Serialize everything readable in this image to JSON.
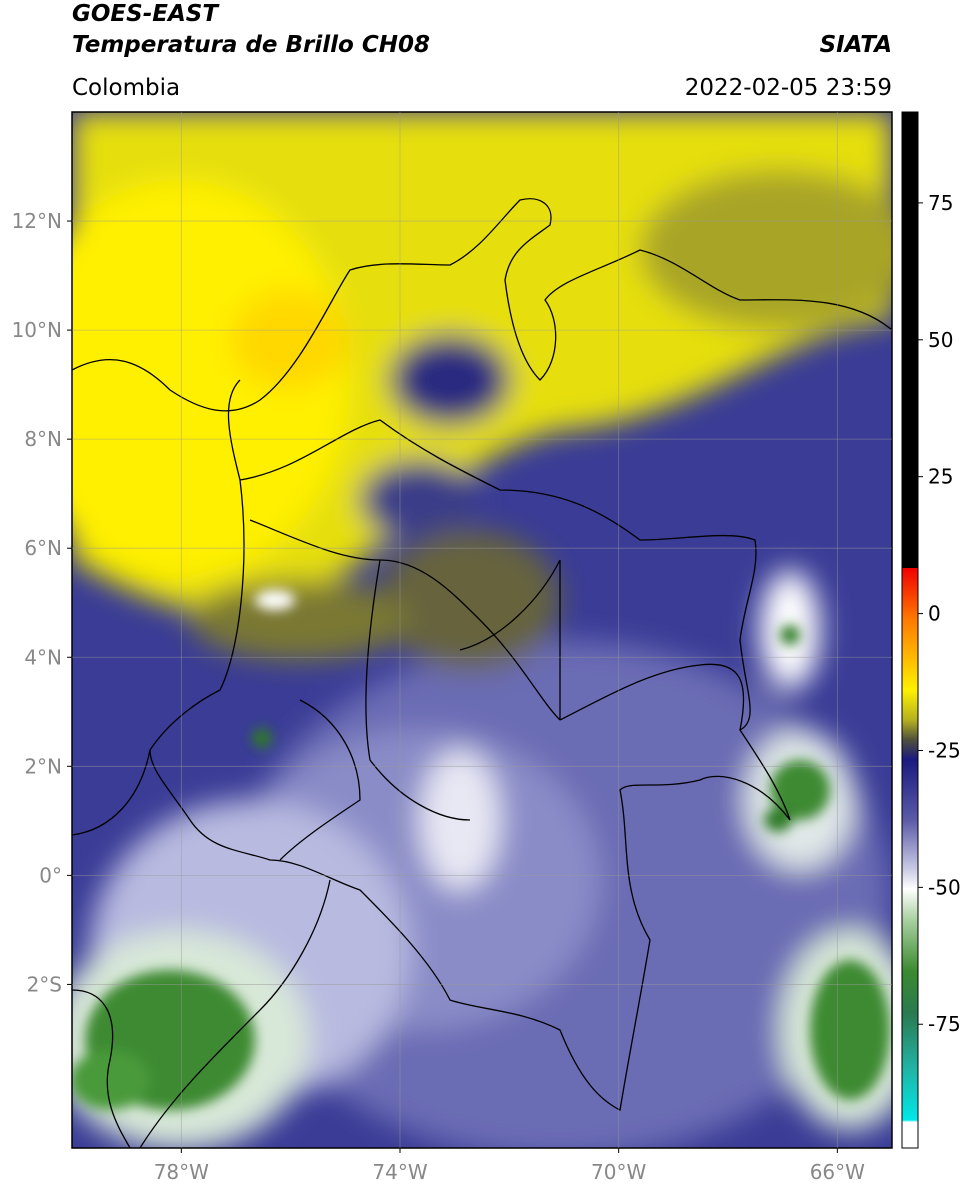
{
  "header": {
    "source": "GOES-EAST",
    "product": "Temperatura de Brillo CH08",
    "agency": "SIATA",
    "region": "Colombia",
    "datetime": "2022-02-05 23:59"
  },
  "map": {
    "xlim": [
      -80,
      -65
    ],
    "ylim": [
      -5,
      14
    ],
    "xticks": [
      {
        "value": -78,
        "label": "78°W"
      },
      {
        "value": -74,
        "label": "74°W"
      },
      {
        "value": -70,
        "label": "70°W"
      },
      {
        "value": -66,
        "label": "66°W"
      }
    ],
    "yticks": [
      {
        "value": 12,
        "label": "12°N"
      },
      {
        "value": 10,
        "label": "10°N"
      },
      {
        "value": 8,
        "label": "8°N"
      },
      {
        "value": 6,
        "label": "6°N"
      },
      {
        "value": 4,
        "label": "4°N"
      },
      {
        "value": 2,
        "label": "2°N"
      },
      {
        "value": 0,
        "label": "0°"
      },
      {
        "value": -2,
        "label": "2°S"
      }
    ],
    "grid": true
  },
  "colorbar": {
    "ylim": [
      -97.6,
      91.6
    ],
    "yticks": [
      75,
      50,
      25,
      0,
      -25,
      -50,
      -75
    ]
  }
}
